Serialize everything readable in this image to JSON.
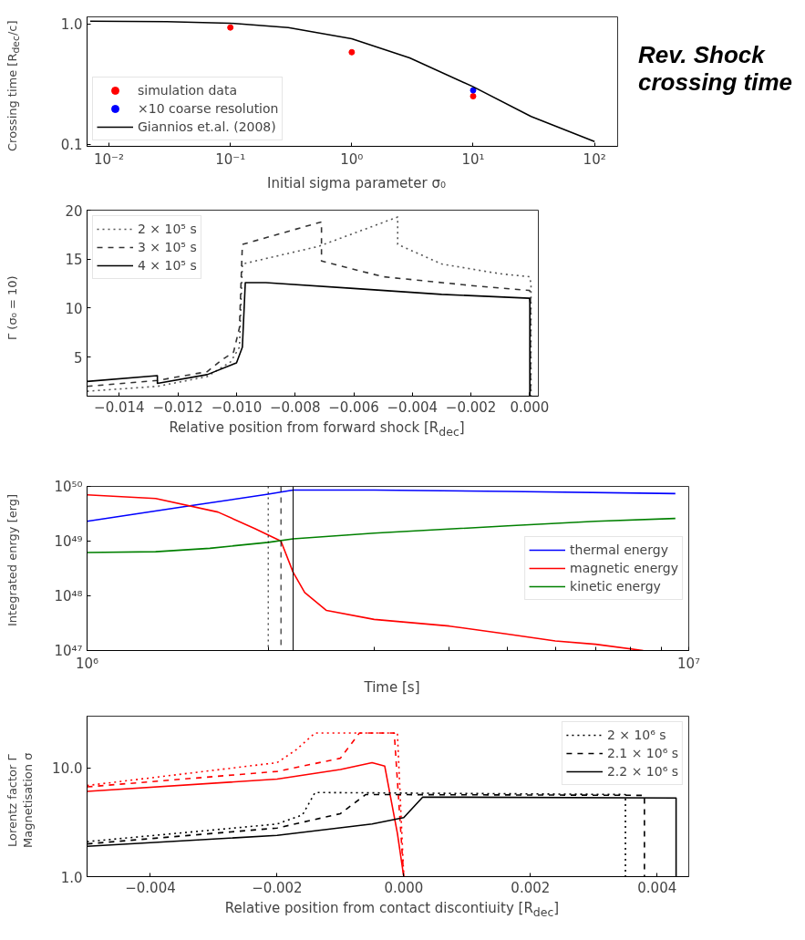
{
  "chart_data": [
    {
      "type": "line",
      "xlabel": "Initial sigma parameter σ₀",
      "ylabel": "Crossing time [R$_{dec}$/c]",
      "log": "xy",
      "xlim": [
        0.0066,
        155
      ],
      "ylim": [
        0.096,
        1.14
      ],
      "xticks": [
        {
          "value": 0.01,
          "label": "10⁻²"
        },
        {
          "value": 0.1,
          "label": "10⁻¹"
        },
        {
          "value": 1,
          "label": "10⁰"
        },
        {
          "value": 10,
          "label": "10¹"
        },
        {
          "value": 100,
          "label": "10²"
        }
      ],
      "yticks": [
        0.1,
        {
          "value": 1,
          "label": "1.0"
        }
      ],
      "grid": false,
      "legend": "bottom left",
      "annotations": [
        "Rev. Shock\ncrossing time"
      ],
      "series": [
        {
          "name": "simulation data",
          "type": "scatter",
          "marker": "circle",
          "color": "#ff0000",
          "x": [
            0.1,
            1,
            10
          ],
          "values": [
            0.93,
            0.58,
            0.25
          ]
        },
        {
          "name": "×10 coarse resolution",
          "type": "scatter",
          "marker": "circle",
          "color": "#0000ff",
          "x": [
            10
          ],
          "values": [
            0.28
          ]
        },
        {
          "name": "Giannios et.al. (2008)",
          "type": "line",
          "line_style": "solid",
          "color": "#000000",
          "x": [
            0.007,
            0.03,
            0.1,
            0.3,
            1,
            3,
            10,
            30,
            100
          ],
          "values": [
            1.05,
            1.04,
            1.01,
            0.93,
            0.75,
            0.52,
            0.3,
            0.17,
            0.105
          ]
        }
      ]
    },
    {
      "type": "line",
      "xlabel": "Relative position from forward shock [R$_{dec}$]",
      "ylabel": "Γ (σ₀ = 10)",
      "xlim": [
        -0.0151,
        0.0003
      ],
      "ylim": [
        1,
        20
      ],
      "xticks": [
        {
          "value": -0.014,
          "label": "−0.014"
        },
        {
          "value": -0.012,
          "label": "−0.012"
        },
        {
          "value": -0.01,
          "label": "−0.010"
        },
        {
          "value": -0.008,
          "label": "−0.008"
        },
        {
          "value": -0.006,
          "label": "−0.006"
        },
        {
          "value": -0.004,
          "label": "−0.004"
        },
        {
          "value": -0.002,
          "label": "−0.002"
        },
        {
          "value": 0,
          "label": "0.000"
        }
      ],
      "yticks": [
        5,
        10,
        15,
        20
      ],
      "grid": false,
      "legend": "top left",
      "series": [
        {
          "name": "2 × 10⁵ s",
          "line_style": "dotted",
          "color": "#555555",
          "x": [
            -0.0151,
            -0.0127,
            -0.011,
            -0.0102,
            -0.0099,
            -0.0098,
            -0.0072,
            -0.0045,
            -0.0045,
            -0.003,
            -0.001,
            0,
            5e-05,
            5e-05
          ],
          "values": [
            1.5,
            2.0,
            3.0,
            4.5,
            6,
            14.5,
            16.3,
            19.3,
            16.5,
            14.5,
            13.5,
            13.2,
            12.5,
            1
          ]
        },
        {
          "name": "3 × 10⁵ s",
          "line_style": "dashed",
          "color": "#333333",
          "x": [
            -0.0151,
            -0.0127,
            -0.011,
            -0.0105,
            -0.0101,
            -0.0099,
            -0.0098,
            -0.0071,
            -0.0071,
            -0.005,
            -0.002,
            0,
            3e-05,
            3e-05
          ],
          "values": [
            2.0,
            2.6,
            3.5,
            4.7,
            5.5,
            8,
            16.5,
            18.8,
            14.8,
            13.2,
            12.3,
            11.8,
            11.5,
            1
          ]
        },
        {
          "name": "4 × 10⁵ s",
          "line_style": "solid",
          "color": "#000000",
          "x": [
            -0.0151,
            -0.0127,
            -0.0127,
            -0.011,
            -0.01,
            -0.0098,
            -0.0097,
            -0.009,
            -0.006,
            -0.003,
            0,
            1e-05,
            1e-05
          ],
          "values": [
            2.5,
            3.1,
            2.3,
            3.2,
            4.4,
            6,
            12.6,
            12.6,
            12.0,
            11.4,
            11.0,
            10.5,
            1
          ]
        }
      ]
    },
    {
      "type": "line",
      "xlabel": "Time [s]",
      "ylabel": "Integrated enrgy [erg]",
      "log": "xy",
      "xlim": [
        1000000,
        10000000
      ],
      "ylim": [
        1e+47,
        1e+50
      ],
      "xticks": [
        {
          "value": 1000000,
          "label": "10⁶"
        },
        {
          "value": 2000000,
          "label": null
        },
        {
          "value": 3000000,
          "label": null
        },
        {
          "value": 4000000,
          "label": null
        },
        {
          "value": 5000000,
          "label": null
        },
        {
          "value": 6000000,
          "label": null
        },
        {
          "value": 7000000,
          "label": null
        },
        {
          "value": 8000000,
          "label": null
        },
        {
          "value": 9000000,
          "label": null
        },
        {
          "value": 10000000,
          "label": "10⁷"
        }
      ],
      "yticks": [
        {
          "value": 1e+47,
          "label": "10⁴⁷"
        },
        {
          "value": 1e+48,
          "label": "10⁴⁸"
        },
        {
          "value": 1e+49,
          "label": "10⁴⁹"
        },
        {
          "value": 1e+50,
          "label": "10⁵⁰"
        }
      ],
      "grid": false,
      "legend": "right",
      "ref_lines": [
        {
          "axis": "x",
          "value": 2000000,
          "color": "#000000",
          "line_style": "dotted"
        },
        {
          "axis": "x",
          "value": 2100000,
          "color": "#000000",
          "line_style": "dashed"
        },
        {
          "axis": "x",
          "value": 2200000,
          "color": "#000000",
          "line_style": "solid"
        }
      ],
      "series": [
        {
          "name": "thermal energy",
          "color": "#0000ff",
          "x": [
            1000000,
            1500000,
            2000000,
            2200000,
            3000000,
            5000000,
            9500000
          ],
          "values": [
            2.3e+49,
            4.5e+49,
            7.2e+49,
            8.6e+49,
            8.6e+49,
            8.1e+49,
            7.4e+49
          ]
        },
        {
          "name": "magnetic energy",
          "color": "#ff0000",
          "x": [
            1000000,
            1300000,
            1650000,
            1900000,
            2100000,
            2200000,
            2300000,
            2500000,
            3000000,
            4000000,
            5000000,
            6000000,
            7000000,
            8400000
          ],
          "values": [
            7e+49,
            6e+49,
            3.4e+49,
            1.7e+49,
            1e+49,
            2.7e+48,
            1.15e+48,
            5.4e+47,
            3.7e+47,
            2.8e+47,
            2e+47,
            1.5e+47,
            1.3e+47,
            1e+47
          ]
        },
        {
          "name": "kinetic energy",
          "color": "#008000",
          "x": [
            1000000,
            1300000,
            1600000,
            2000000,
            2200000,
            3000000,
            5000000,
            7000000,
            9500000
          ],
          "values": [
            6.2e+48,
            6.4e+48,
            7.4e+48,
            9.5e+48,
            1.1e+49,
            1.4e+49,
            1.9e+49,
            2.3e+49,
            2.6e+49
          ]
        }
      ]
    },
    {
      "type": "line",
      "xlabel": "Relative position from contact discontiuity [R$_{dec}$]",
      "ylabel": "Lorentz factor Γ\nMagnetisation σ",
      "log": "y",
      "xlim": [
        -0.005,
        0.0045
      ],
      "ylim": [
        1,
        30
      ],
      "xticks": [
        {
          "value": -0.004,
          "label": "−0.004"
        },
        {
          "value": -0.002,
          "label": "−0.002"
        },
        {
          "value": 0,
          "label": "0.000"
        },
        {
          "value": 0.002,
          "label": "0.002"
        },
        {
          "value": 0.004,
          "label": "0.004"
        }
      ],
      "yticks": [
        {
          "value": 1,
          "label": "1.0"
        },
        {
          "value": 10,
          "label": "10.0"
        }
      ],
      "grid": false,
      "legend": "top right",
      "series": [
        {
          "line_style": "dotted",
          "color": "#ff0000",
          "x": [
            -0.005,
            -0.002,
            -0.0017,
            -0.0014,
            -0.0001,
            0
          ],
          "values": [
            6.9,
            11.2,
            14.7,
            21,
            21,
            1
          ]
        },
        {
          "line_style": "dashed",
          "color": "#ff0000",
          "x": [
            -0.005,
            -0.002,
            -0.001,
            -0.0007,
            -0.00015,
            0
          ],
          "values": [
            6.7,
            9.3,
            12.3,
            21,
            21,
            1
          ]
        },
        {
          "line_style": "solid",
          "color": "#ff0000",
          "x": [
            -0.005,
            -0.002,
            -0.001,
            -0.0005,
            -0.0003,
            -0.0001,
            0
          ],
          "values": [
            6.1,
            7.9,
            9.7,
            11.2,
            10.4,
            2.5,
            1
          ]
        },
        {
          "name": "2 × 10⁶ s",
          "line_style": "dotted",
          "color": "#000000",
          "x": [
            -0.005,
            -0.002,
            -0.0016,
            -0.0014,
            0.0035,
            0.0035
          ],
          "values": [
            2.1,
            3.05,
            3.7,
            5.95,
            5.7,
            1
          ]
        },
        {
          "name": "2.1 × 10⁶ s",
          "line_style": "dashed",
          "color": "#000000",
          "x": [
            -0.005,
            -0.002,
            -0.001,
            -0.0006,
            0.0038,
            0.0038
          ],
          "values": [
            2.0,
            2.8,
            3.8,
            5.7,
            5.6,
            1
          ]
        },
        {
          "name": "2.2 × 10⁶ s",
          "line_style": "solid",
          "color": "#000000",
          "x": [
            -0.005,
            -0.002,
            -0.0005,
            0,
            0.0003,
            0.0043,
            0.0043
          ],
          "values": [
            1.9,
            2.4,
            3.05,
            3.5,
            5.4,
            5.3,
            1
          ]
        }
      ]
    }
  ]
}
